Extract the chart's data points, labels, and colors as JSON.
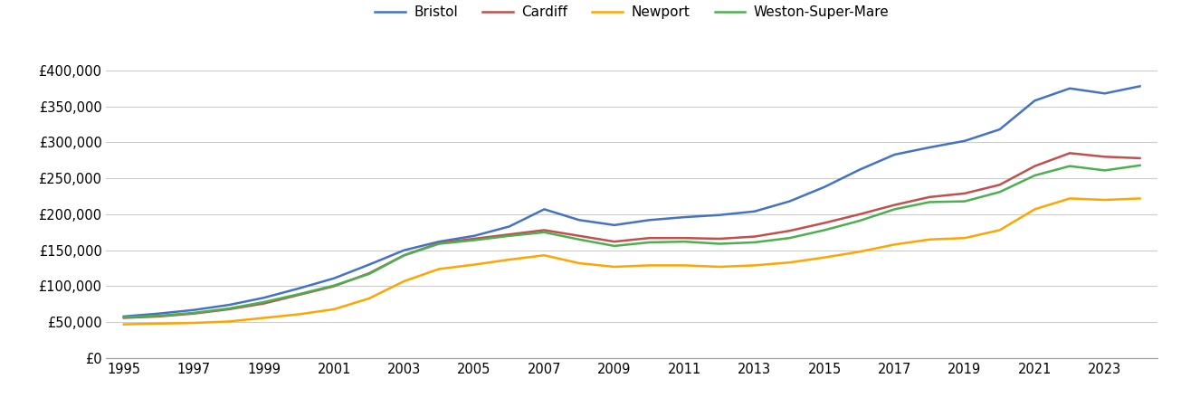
{
  "years": [
    1995,
    1996,
    1997,
    1998,
    1999,
    2000,
    2001,
    2002,
    2003,
    2004,
    2005,
    2006,
    2007,
    2008,
    2009,
    2010,
    2011,
    2012,
    2013,
    2014,
    2015,
    2016,
    2017,
    2018,
    2019,
    2020,
    2021,
    2022,
    2023,
    2024
  ],
  "bristol": [
    58000,
    62000,
    67000,
    74000,
    84000,
    97000,
    111000,
    130000,
    150000,
    162000,
    170000,
    183000,
    207000,
    192000,
    185000,
    192000,
    196000,
    199000,
    204000,
    218000,
    238000,
    262000,
    283000,
    293000,
    302000,
    318000,
    358000,
    375000,
    368000,
    378000
  ],
  "cardiff": [
    56000,
    58000,
    62000,
    68000,
    76000,
    88000,
    100000,
    118000,
    143000,
    160000,
    166000,
    172000,
    178000,
    170000,
    162000,
    167000,
    167000,
    166000,
    169000,
    177000,
    188000,
    200000,
    213000,
    224000,
    229000,
    241000,
    267000,
    285000,
    280000,
    278000
  ],
  "newport": [
    47000,
    48000,
    49000,
    51000,
    56000,
    61000,
    68000,
    83000,
    107000,
    124000,
    130000,
    137000,
    143000,
    132000,
    127000,
    129000,
    129000,
    127000,
    129000,
    133000,
    140000,
    148000,
    158000,
    165000,
    167000,
    178000,
    207000,
    222000,
    220000,
    222000
  ],
  "weston": [
    57000,
    59000,
    63000,
    69000,
    78000,
    89000,
    101000,
    117000,
    143000,
    159000,
    164000,
    170000,
    175000,
    165000,
    156000,
    161000,
    162000,
    159000,
    161000,
    167000,
    178000,
    191000,
    207000,
    217000,
    218000,
    231000,
    254000,
    267000,
    261000,
    268000
  ],
  "colors": {
    "bristol": "#4472C4",
    "cardiff": "#C0504D",
    "newport": "#FFA500",
    "weston": "#4CAF50"
  },
  "yticks": [
    0,
    50000,
    100000,
    150000,
    200000,
    250000,
    300000,
    350000,
    400000
  ],
  "xticks": [
    1995,
    1997,
    1999,
    2001,
    2003,
    2005,
    2007,
    2009,
    2011,
    2013,
    2015,
    2017,
    2019,
    2021,
    2023
  ],
  "ylim": [
    0,
    430000
  ],
  "bg_color": "#ffffff",
  "grid_color": "#cccccc",
  "line_width": 1.8,
  "legend_labels": [
    "Bristol",
    "Cardiff",
    "Newport",
    "Weston-Super-Mare"
  ],
  "figsize": [
    13.05,
    4.5
  ],
  "dpi": 100
}
